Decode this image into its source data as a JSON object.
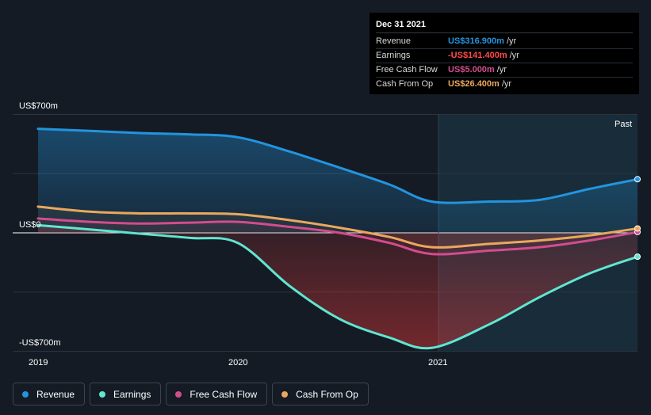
{
  "colors": {
    "revenue": "#2394df",
    "earnings": "#5fe6d1",
    "fcf": "#d24d8c",
    "cfo": "#e9a85c",
    "background": "#151b24"
  },
  "tooltip": {
    "date": "Dec 31 2021",
    "rows": [
      {
        "label": "Revenue",
        "value": "US$316.900m",
        "unit": "/yr",
        "color": "#2394df"
      },
      {
        "label": "Earnings",
        "value": "-US$141.400m",
        "unit": "/yr",
        "color": "#ff4c4c"
      },
      {
        "label": "Free Cash Flow",
        "value": "US$5.000m",
        "unit": "/yr",
        "color": "#d24d8c"
      },
      {
        "label": "Cash From Op",
        "value": "US$26.400m",
        "unit": "/yr",
        "color": "#e9a85c"
      }
    ]
  },
  "legend": [
    {
      "label": "Revenue",
      "color": "#2394df"
    },
    {
      "label": "Earnings",
      "color": "#5fe6d1"
    },
    {
      "label": "Free Cash Flow",
      "color": "#d24d8c"
    },
    {
      "label": "Cash From Op",
      "color": "#e9a85c"
    }
  ],
  "chart_data": {
    "type": "area",
    "y_tick_labels": [
      "US$700m",
      "US$0",
      "-US$700m"
    ],
    "x_tick_labels": [
      "2019",
      "2020",
      "2021"
    ],
    "past_label": "Past",
    "ylim": [
      -700,
      700
    ],
    "xlim": [
      2018.99,
      2021.99
    ],
    "grid": true,
    "legend_position": "bottom",
    "series": [
      {
        "name": "Revenue",
        "key": "revenue",
        "x": [
          2018.99,
          2019.25,
          2019.5,
          2019.75,
          2019.99,
          2020.25,
          2020.5,
          2020.75,
          2020.96,
          2021.25,
          2021.5,
          2021.75,
          2021.99
        ],
        "values": [
          615,
          603,
          590,
          582,
          565,
          480,
          385,
          285,
          185,
          185,
          195,
          260,
          317
        ]
      },
      {
        "name": "Earnings",
        "key": "earnings",
        "x": [
          2018.99,
          2019.25,
          2019.5,
          2019.75,
          2019.99,
          2020.25,
          2020.5,
          2020.75,
          2020.96,
          2021.25,
          2021.5,
          2021.75,
          2021.99
        ],
        "values": [
          45,
          20,
          -5,
          -30,
          -60,
          -315,
          -510,
          -620,
          -680,
          -540,
          -380,
          -240,
          -141
        ]
      },
      {
        "name": "Free Cash Flow",
        "key": "fcf",
        "x": [
          2018.99,
          2019.25,
          2019.5,
          2019.75,
          2019.99,
          2020.25,
          2020.5,
          2020.75,
          2020.96,
          2021.25,
          2021.5,
          2021.75,
          2021.99
        ],
        "values": [
          85,
          65,
          55,
          60,
          65,
          35,
          0,
          -60,
          -125,
          -105,
          -85,
          -45,
          5
        ]
      },
      {
        "name": "Cash From Op",
        "key": "cfo",
        "x": [
          2018.99,
          2019.25,
          2019.5,
          2019.75,
          2019.99,
          2020.25,
          2020.5,
          2020.75,
          2020.96,
          2021.25,
          2021.5,
          2021.75,
          2021.99
        ],
        "values": [
          155,
          125,
          115,
          115,
          110,
          75,
          30,
          -25,
          -85,
          -65,
          -45,
          -15,
          26
        ]
      }
    ]
  }
}
